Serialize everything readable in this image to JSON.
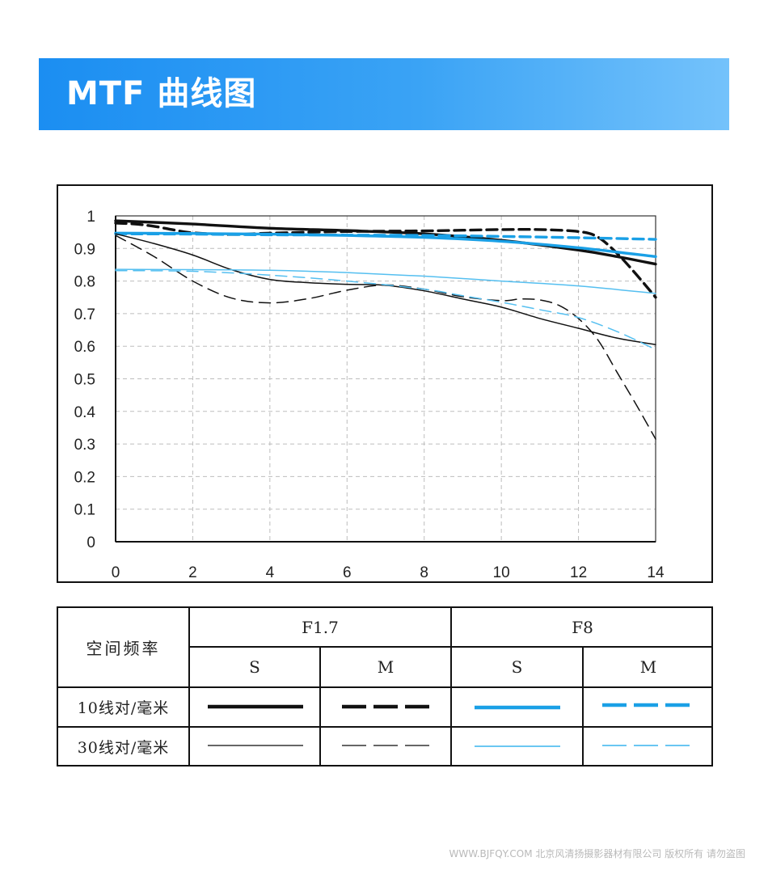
{
  "header": {
    "title": "MTF 曲线图"
  },
  "chart_data": {
    "type": "line",
    "xlim": [
      0,
      14
    ],
    "ylim": [
      0,
      1
    ],
    "x_ticks": [
      "0",
      "2",
      "4",
      "6",
      "8",
      "10",
      "12",
      "14"
    ],
    "y_ticks": [
      "0",
      "0.1",
      "0.2",
      "0.3",
      "0.4",
      "0.5",
      "0.6",
      "0.7",
      "0.8",
      "0.9",
      "1"
    ],
    "grid": true,
    "series": [
      {
        "color": "#111111",
        "style": "solid",
        "weight": "thick",
        "x": [
          0,
          2,
          4,
          6,
          8,
          10,
          12,
          13,
          14
        ],
        "y": [
          0.985,
          0.975,
          0.962,
          0.955,
          0.945,
          0.925,
          0.895,
          0.875,
          0.852
        ]
      },
      {
        "color": "#111111",
        "style": "dashed",
        "weight": "thick",
        "x": [
          0,
          0.5,
          1,
          1.5,
          2,
          3,
          4,
          6,
          8,
          9,
          10,
          11,
          12,
          12.5,
          13,
          13.5,
          14
        ],
        "y": [
          0.978,
          0.975,
          0.968,
          0.957,
          0.948,
          0.943,
          0.947,
          0.952,
          0.954,
          0.956,
          0.958,
          0.958,
          0.952,
          0.935,
          0.885,
          0.82,
          0.75
        ]
      },
      {
        "color": "#1aa0e6",
        "style": "solid",
        "weight": "thick",
        "x": [
          0,
          2,
          4,
          6,
          8,
          10,
          12,
          14
        ],
        "y": [
          0.947,
          0.946,
          0.944,
          0.94,
          0.934,
          0.922,
          0.902,
          0.875
        ]
      },
      {
        "color": "#1aa0e6",
        "style": "dashed",
        "weight": "thick",
        "x": [
          0,
          2,
          4,
          6,
          8,
          10,
          12,
          14
        ],
        "y": [
          0.945,
          0.944,
          0.942,
          0.941,
          0.94,
          0.937,
          0.933,
          0.928
        ]
      },
      {
        "color": "#111111",
        "style": "solid",
        "weight": "thin",
        "x": [
          0,
          1,
          2,
          3,
          4,
          5,
          6,
          7,
          8,
          9,
          10,
          11,
          12,
          13,
          14
        ],
        "y": [
          0.945,
          0.915,
          0.88,
          0.835,
          0.805,
          0.795,
          0.79,
          0.787,
          0.77,
          0.745,
          0.72,
          0.685,
          0.655,
          0.625,
          0.605
        ]
      },
      {
        "color": "#111111",
        "style": "dashed",
        "weight": "thin",
        "x": [
          0,
          1,
          2,
          3,
          4,
          5,
          6,
          7,
          8,
          9,
          10,
          10.5,
          11,
          11.5,
          12,
          12.5,
          13,
          13.5,
          14
        ],
        "y": [
          0.94,
          0.875,
          0.8,
          0.748,
          0.733,
          0.746,
          0.772,
          0.788,
          0.775,
          0.752,
          0.74,
          0.745,
          0.742,
          0.725,
          0.685,
          0.62,
          0.52,
          0.42,
          0.315
        ]
      },
      {
        "color": "#55bff0",
        "style": "solid",
        "weight": "thin",
        "x": [
          0,
          2,
          4,
          6,
          8,
          10,
          12,
          14
        ],
        "y": [
          0.836,
          0.835,
          0.833,
          0.826,
          0.815,
          0.8,
          0.785,
          0.762
        ]
      },
      {
        "color": "#55bff0",
        "style": "dashed",
        "weight": "thin",
        "x": [
          0,
          2,
          4,
          6,
          8,
          9,
          10,
          11,
          12,
          13,
          14
        ],
        "y": [
          0.832,
          0.83,
          0.818,
          0.8,
          0.775,
          0.755,
          0.735,
          0.712,
          0.688,
          0.645,
          0.59
        ]
      }
    ]
  },
  "legend": {
    "spatial_freq_label": "空间频率",
    "aperture_1": "F1.7",
    "aperture_2": "F8",
    "sagittal": "S",
    "meridional": "M",
    "row_10": "10线对/毫米",
    "row_30": "30线对/毫米"
  },
  "footer": {
    "watermark": "WWW.BJFQY.COM 北京风清扬摄影器材有限公司 版权所有 请勿盗图"
  }
}
